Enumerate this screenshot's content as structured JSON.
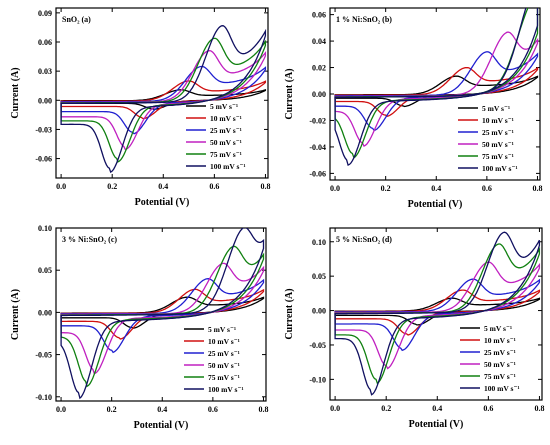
{
  "chart_data": [
    {
      "type": "line",
      "panel_label": "SnO₂ (a)",
      "xlabel": "Potential (V)",
      "ylabel": "Current (A)",
      "xlim": [
        -0.02,
        0.81
      ],
      "ylim": [
        -0.08,
        0.095
      ],
      "xticks": [
        "0.0",
        "0.2",
        "0.4",
        "0.6",
        "0.8"
      ],
      "yticks": [
        "-0.06",
        "-0.03",
        "0.00",
        "0.03",
        "0.06",
        "0.09"
      ],
      "legend_position": "bottom-right",
      "series": [
        {
          "name": "5 mV s⁻¹",
          "color": "#000000",
          "anodic_peak": {
            "x": 0.47,
            "y": 0.012
          },
          "cathodic_peak": {
            "x": 0.36,
            "y": -0.009
          }
        },
        {
          "name": "10 mV s⁻¹",
          "color": "#d01010",
          "anodic_peak": {
            "x": 0.5,
            "y": 0.022
          },
          "cathodic_peak": {
            "x": 0.32,
            "y": -0.018
          }
        },
        {
          "name": "25 mV s⁻¹",
          "color": "#2020d0",
          "anodic_peak": {
            "x": 0.55,
            "y": 0.038
          },
          "cathodic_peak": {
            "x": 0.28,
            "y": -0.033
          }
        },
        {
          "name": "50 mV s⁻¹",
          "color": "#c020c0",
          "anodic_peak": {
            "x": 0.58,
            "y": 0.055
          },
          "cathodic_peak": {
            "x": 0.25,
            "y": -0.048
          }
        },
        {
          "name": "75 mV s⁻¹",
          "color": "#108010",
          "anodic_peak": {
            "x": 0.6,
            "y": 0.068
          },
          "cathodic_peak": {
            "x": 0.22,
            "y": -0.06
          }
        },
        {
          "name": "100 mV s⁻¹",
          "color": "#101060",
          "anodic_peak": {
            "x": 0.63,
            "y": 0.08
          },
          "cathodic_peak": {
            "x": 0.19,
            "y": -0.07
          }
        }
      ]
    },
    {
      "type": "line",
      "panel_label": "1 % Ni:SnO₂ (b)",
      "xlabel": "Potential (V)",
      "ylabel": "Current (A)",
      "xlim": [
        -0.02,
        0.81
      ],
      "ylim": [
        -0.065,
        0.065
      ],
      "xticks": [
        "0.0",
        "0.2",
        "0.4",
        "0.6",
        "0.8"
      ],
      "yticks": [
        "-0.06",
        "-0.04",
        "-0.02",
        "0.00",
        "0.02",
        "0.04",
        "0.06"
      ],
      "legend_position": "bottom-right",
      "series": [
        {
          "name": "5 mV s⁻¹",
          "color": "#000000",
          "anodic_peak": {
            "x": 0.48,
            "y": 0.015
          },
          "cathodic_peak": {
            "x": 0.27,
            "y": -0.009
          }
        },
        {
          "name": "10 mV s⁻¹",
          "color": "#d01010",
          "anodic_peak": {
            "x": 0.52,
            "y": 0.022
          },
          "cathodic_peak": {
            "x": 0.2,
            "y": -0.016
          }
        },
        {
          "name": "25 mV s⁻¹",
          "color": "#2020d0",
          "anodic_peak": {
            "x": 0.6,
            "y": 0.034
          },
          "cathodic_peak": {
            "x": 0.15,
            "y": -0.026
          }
        },
        {
          "name": "50 mV s⁻¹",
          "color": "#c020c0",
          "anodic_peak": {
            "x": 0.68,
            "y": 0.046
          },
          "cathodic_peak": {
            "x": 0.11,
            "y": -0.037
          }
        },
        {
          "name": "75 mV s⁻¹",
          "color": "#108010",
          "anodic_peak": {
            "x": 0.78,
            "y": 0.055
          },
          "cathodic_peak": {
            "x": 0.07,
            "y": -0.045
          }
        },
        {
          "name": "100 mV s⁻¹",
          "color": "#101060",
          "anodic_peak": {
            "x": 0.79,
            "y": 0.062
          },
          "cathodic_peak": {
            "x": 0.05,
            "y": -0.05
          }
        }
      ]
    },
    {
      "type": "line",
      "panel_label": "3 % Ni:SnO₂ (c)",
      "xlabel": "Potential (V)",
      "ylabel": "Current (A)",
      "xlim": [
        -0.02,
        0.81
      ],
      "ylim": [
        -0.105,
        0.1
      ],
      "xticks": [
        "0.0",
        "0.2",
        "0.4",
        "0.6",
        "0.8"
      ],
      "yticks": [
        "-0.10",
        "-0.05",
        "0.00",
        "0.05",
        "0.10"
      ],
      "legend_position": "bottom-right",
      "series": [
        {
          "name": "5 mV s⁻¹",
          "color": "#000000",
          "anodic_peak": {
            "x": 0.5,
            "y": 0.02
          },
          "cathodic_peak": {
            "x": 0.28,
            "y": -0.018
          }
        },
        {
          "name": "10 mV s⁻¹",
          "color": "#d01010",
          "anodic_peak": {
            "x": 0.53,
            "y": 0.03
          },
          "cathodic_peak": {
            "x": 0.23,
            "y": -0.03
          }
        },
        {
          "name": "25 mV s⁻¹",
          "color": "#2020d0",
          "anodic_peak": {
            "x": 0.58,
            "y": 0.043
          },
          "cathodic_peak": {
            "x": 0.2,
            "y": -0.045
          }
        },
        {
          "name": "50 mV s⁻¹",
          "color": "#c020c0",
          "anodic_peak": {
            "x": 0.64,
            "y": 0.06
          },
          "cathodic_peak": {
            "x": 0.13,
            "y": -0.068
          }
        },
        {
          "name": "75 mV s⁻¹",
          "color": "#108010",
          "anodic_peak": {
            "x": 0.68,
            "y": 0.077
          },
          "cathodic_peak": {
            "x": 0.1,
            "y": -0.082
          }
        },
        {
          "name": "100 mV s⁻¹",
          "color": "#101060",
          "anodic_peak": {
            "x": 0.72,
            "y": 0.092
          },
          "cathodic_peak": {
            "x": 0.07,
            "y": -0.095
          }
        }
      ]
    },
    {
      "type": "line",
      "panel_label": "5 % Ni:SnO₂ (d)",
      "xlabel": "Potential (V)",
      "ylabel": "Current (A)",
      "xlim": [
        -0.02,
        0.81
      ],
      "ylim": [
        -0.13,
        0.12
      ],
      "xticks": [
        "0.0",
        "0.2",
        "0.4",
        "0.6",
        "0.8"
      ],
      "yticks": [
        "-0.10",
        "-0.05",
        "0.00",
        "0.05",
        "0.10"
      ],
      "legend_position": "bottom-right",
      "series": [
        {
          "name": "5 mV s⁻¹",
          "color": "#000000",
          "anodic_peak": {
            "x": 0.46,
            "y": 0.02
          },
          "cathodic_peak": {
            "x": 0.32,
            "y": -0.02
          }
        },
        {
          "name": "10 mV s⁻¹",
          "color": "#d01010",
          "anodic_peak": {
            "x": 0.5,
            "y": 0.033
          },
          "cathodic_peak": {
            "x": 0.28,
            "y": -0.034
          }
        },
        {
          "name": "25 mV s⁻¹",
          "color": "#2020d0",
          "anodic_peak": {
            "x": 0.54,
            "y": 0.05
          },
          "cathodic_peak": {
            "x": 0.26,
            "y": -0.055
          }
        },
        {
          "name": "50 mV s⁻¹",
          "color": "#c020c0",
          "anodic_peak": {
            "x": 0.6,
            "y": 0.075
          },
          "cathodic_peak": {
            "x": 0.2,
            "y": -0.08
          }
        },
        {
          "name": "75 mV s⁻¹",
          "color": "#108010",
          "anodic_peak": {
            "x": 0.64,
            "y": 0.1
          },
          "cathodic_peak": {
            "x": 0.16,
            "y": -0.1
          }
        },
        {
          "name": "100 mV s⁻¹",
          "color": "#101060",
          "anodic_peak": {
            "x": 0.66,
            "y": 0.115
          },
          "cathodic_peak": {
            "x": 0.14,
            "y": -0.115
          }
        }
      ]
    }
  ]
}
